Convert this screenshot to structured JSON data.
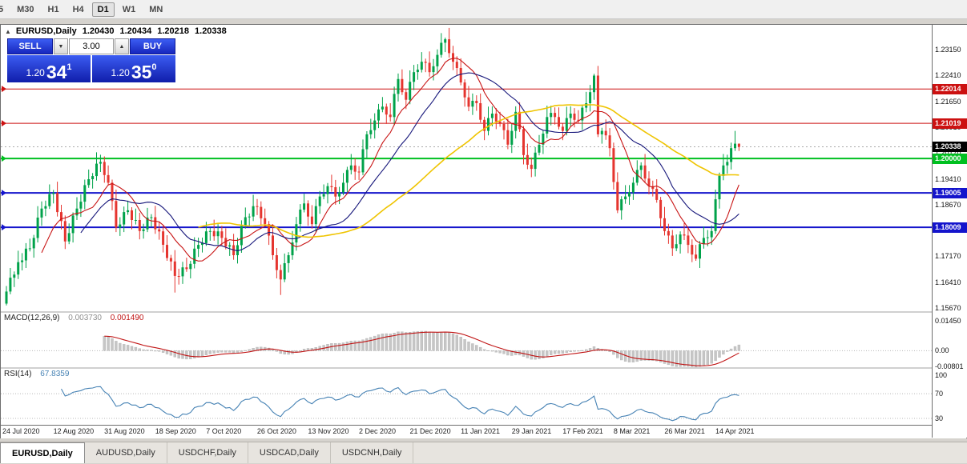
{
  "toolbar": {
    "timeframes": [
      "5",
      "M30",
      "H1",
      "H4",
      "D1",
      "W1",
      "MN"
    ],
    "active": "D1"
  },
  "header": {
    "collapse_icon": "▲",
    "title": "EURUSD,Daily",
    "open": "1.20430",
    "high": "1.20434",
    "low": "1.20218",
    "close": "1.20338"
  },
  "one_click": {
    "sell_label": "SELL",
    "buy_label": "BUY",
    "lot_value": "3.00",
    "dd_down_icon": "▼",
    "dd_up_icon": "▲",
    "sell_price": {
      "small": "1.20",
      "big": "34",
      "sup": "1"
    },
    "buy_price": {
      "small": "1.20",
      "big": "35",
      "sup": "0"
    }
  },
  "tabs": {
    "items": [
      "EURUSD,Daily",
      "AUDUSD,Daily",
      "USDCHF,Daily",
      "USDCAD,Daily",
      "USDCNH,Daily"
    ],
    "active_index": 0
  },
  "chart_data": {
    "type": "candlestick",
    "symbol": "EURUSD",
    "timeframe": "Daily",
    "x_labels": [
      "24 Jul 2020",
      "12 Aug 2020",
      "31 Aug 2020",
      "18 Sep 2020",
      "7 Oct 2020",
      "26 Oct 2020",
      "13 Nov 2020",
      "2 Dec 2020",
      "21 Dec 2020",
      "11 Jan 2021",
      "29 Jan 2021",
      "17 Feb 2021",
      "8 Mar 2021",
      "26 Mar 2021",
      "14 Apr 2021"
    ],
    "bars_per_label": 13,
    "price_axis": {
      "min": 1.1558,
      "max": 1.2387,
      "labels": [
        1.2315,
        1.2241,
        1.2165,
        1.2091,
        1.2017,
        1.1941,
        1.1867,
        1.1793,
        1.1717,
        1.1641,
        1.1567
      ]
    },
    "horizontal_lines": [
      {
        "price": 1.22014,
        "color": "#cc1111",
        "width": 1
      },
      {
        "price": 1.21019,
        "color": "#cc1111",
        "width": 1
      },
      {
        "price": 1.2,
        "color": "#00c020",
        "width": 2
      },
      {
        "price": 1.19005,
        "color": "#1414cc",
        "width": 2
      },
      {
        "price": 1.18009,
        "color": "#1414cc",
        "width": 2
      }
    ],
    "current_price": 1.20338,
    "colors": {
      "up": "#00a24a",
      "down": "#e5352f",
      "current_line": "#aaaaaa",
      "separator": "#d0d0d0",
      "hist": "#c6c6c6",
      "hist_edge": "#b2b2b2"
    },
    "ma": [
      {
        "period": 10,
        "color": "#c81414"
      },
      {
        "period": 20,
        "color": "#16167a"
      },
      {
        "period": 50,
        "color": "#efc400"
      }
    ],
    "macd": {
      "label": "MACD(12,26,9)",
      "value_main": "0.003730",
      "value_signal": "0.001490",
      "fast": 12,
      "slow": 26,
      "signal": 9,
      "scale_max": "0.01450",
      "scale_mid": "0.00",
      "scale_min": "-0.00801",
      "signal_color": "#c01414"
    },
    "rsi": {
      "label": "RSI(14)",
      "value": "67.8359",
      "period": 14,
      "levels": [
        100,
        70,
        30
      ],
      "color": "#4682B4"
    },
    "first_open": 1.158,
    "wick_upper": [
      0.0016,
      0.0028,
      0.0009,
      0.0033,
      0.0021
    ],
    "wick_lower": [
      0.0022,
      0.0008,
      0.0027,
      0.0013,
      0.0024
    ],
    "closes": [
      1.1615,
      1.1655,
      1.1664,
      1.17,
      1.1705,
      1.1739,
      1.174,
      1.177,
      1.1829,
      1.1855,
      1.1862,
      1.1897,
      1.19,
      1.1845,
      1.1819,
      1.176,
      1.1784,
      1.1835,
      1.1855,
      1.1875,
      1.1923,
      1.194,
      1.1949,
      1.1985,
      1.199,
      1.1952,
      1.193,
      1.1877,
      1.18,
      1.1809,
      1.1845,
      1.185,
      1.1822,
      1.1822,
      1.179,
      1.1795,
      1.1829,
      1.183,
      1.1795,
      1.1789,
      1.175,
      1.1712,
      1.1702,
      1.166,
      1.1659,
      1.1685,
      1.168,
      1.1695,
      1.1739,
      1.175,
      1.1755,
      1.1789,
      1.179,
      1.1775,
      1.1789,
      1.177,
      1.1745,
      1.1749,
      1.172,
      1.1749,
      1.1805,
      1.183,
      1.1832,
      1.1862,
      1.186,
      1.1827,
      1.181,
      1.1777,
      1.172,
      1.1677,
      1.165,
      1.1697,
      1.172,
      1.1757,
      1.181,
      1.1852,
      1.187,
      1.1832,
      1.181,
      1.1862,
      1.189,
      1.1897,
      1.192,
      1.1917,
      1.189,
      1.1902,
      1.193,
      1.1967,
      1.198,
      1.1962,
      1.196,
      1.2027,
      1.207,
      1.2082,
      1.211,
      1.2142,
      1.215,
      1.2127,
      1.212,
      1.2187,
      1.223,
      1.2192,
      1.217,
      1.2222,
      1.225,
      1.2257,
      1.228,
      1.2277,
      1.225,
      1.2267,
      1.23,
      1.2335,
      1.2345,
      1.2305,
      1.228,
      1.2262,
      1.222,
      1.2177,
      1.215,
      1.2167,
      1.216,
      1.2112,
      1.208,
      1.2117,
      1.213,
      1.2107,
      1.21,
      1.2082,
      1.204,
      1.208,
      1.2135,
      1.2085,
      1.201,
      1.1982,
      1.197,
      1.2017,
      1.204,
      1.2072,
      1.212,
      1.2132,
      1.212,
      1.2092,
      1.208,
      1.2117,
      1.213,
      1.2112,
      1.211,
      1.2147,
      1.216,
      1.2192,
      1.224,
      1.207,
      1.208,
      1.2067,
      1.203,
      1.1932,
      1.185,
      1.1882,
      1.189,
      1.1902,
      1.193,
      1.1967,
      1.198,
      1.1942,
      1.192,
      1.1912,
      1.188,
      1.1827,
      1.179,
      1.1777,
      1.174,
      1.1752,
      1.178,
      1.1777,
      1.175,
      1.1722,
      1.171,
      1.1752,
      1.177,
      1.1772,
      1.179,
      1.1882,
      1.195,
      1.198,
      1.199,
      1.203,
      1.2043,
      1.20338
    ],
    "overrides": {
      "0": {
        "l": 1.1575
      },
      "24": {
        "h": 1.2011
      },
      "43": {
        "l": 1.1612
      },
      "70": {
        "l": 1.1605
      },
      "112": {
        "h": 1.235
      },
      "150": {
        "h": 1.2245
      },
      "176": {
        "l": 1.1704
      },
      "186": {
        "h": 1.208
      },
      "187": {
        "h": 1.20434,
        "l": 1.20218
      }
    }
  }
}
